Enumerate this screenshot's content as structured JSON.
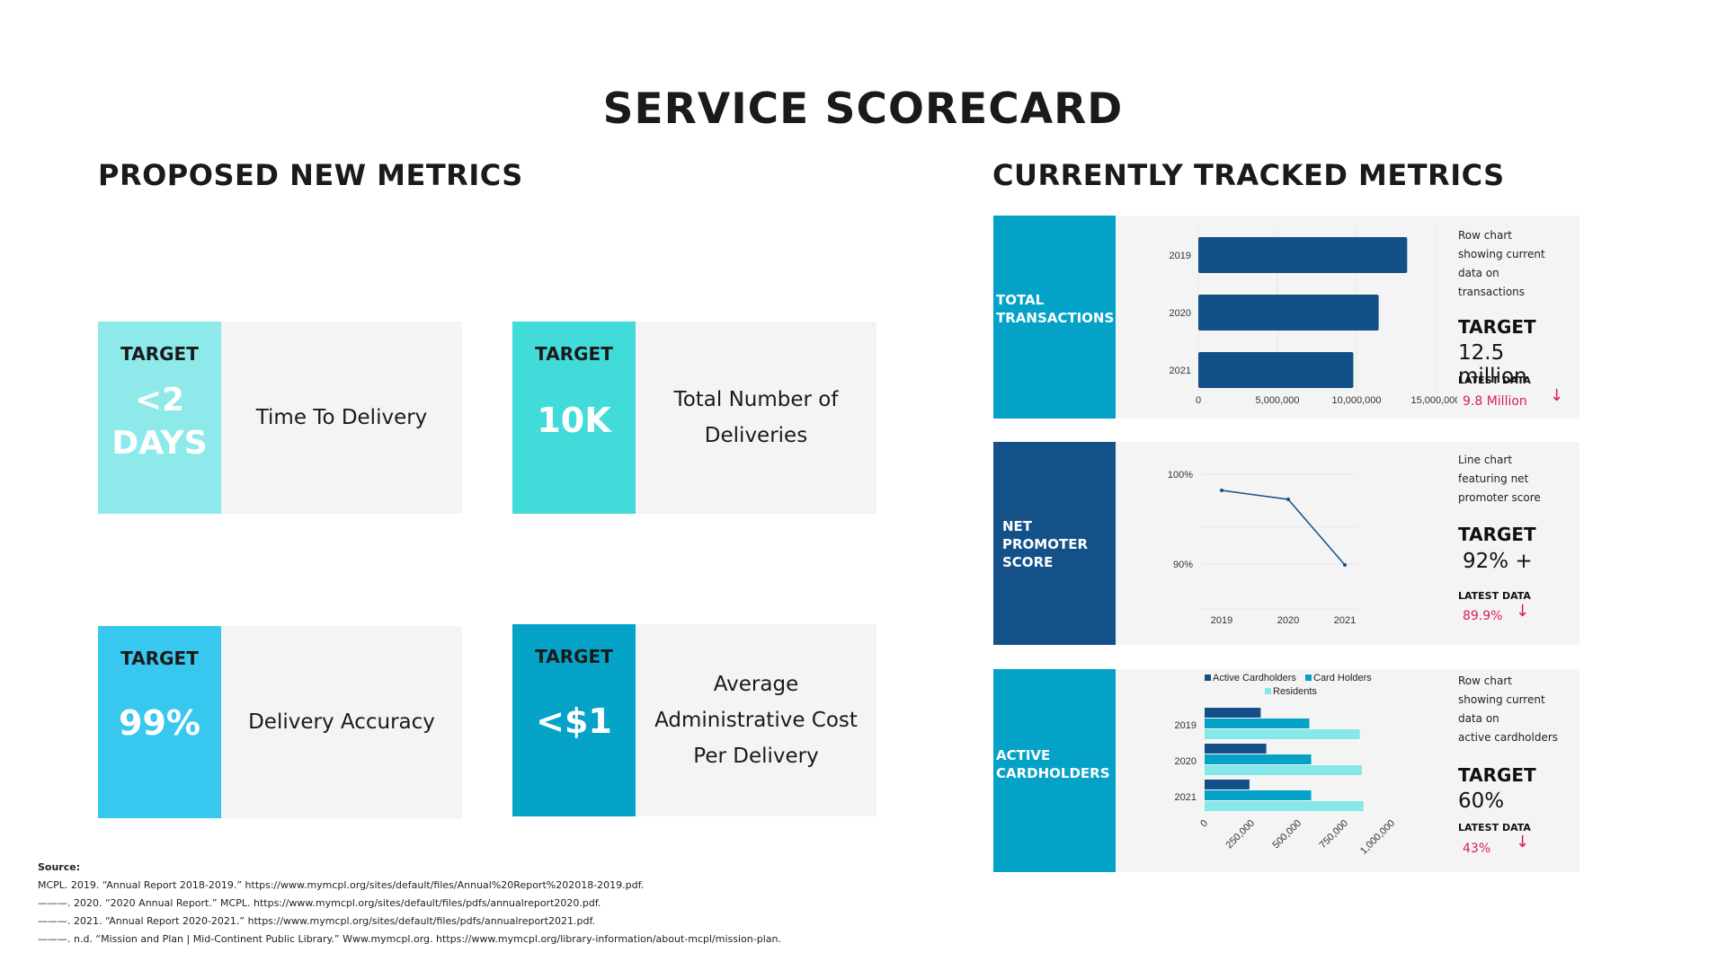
{
  "title": "SERVICE SCORECARD",
  "proposed": {
    "heading": "PROPOSED NEW METRICS",
    "cards": [
      {
        "target_label": "TARGET",
        "target_value": "<2\nDAYS",
        "metric": "Time To Delivery",
        "color": "#8de9ea"
      },
      {
        "target_label": "TARGET",
        "target_value": "10K",
        "metric": "Total Number of\nDeliveries",
        "color": "#41dbd9"
      },
      {
        "target_label": "TARGET",
        "target_value": "99%",
        "metric": "Delivery Accuracy",
        "color": "#38c7ef"
      },
      {
        "target_label": "TARGET",
        "target_value": "<$1",
        "metric": "Average\nAdministrative Cost\nPer Delivery",
        "color": "#04a3c7"
      }
    ]
  },
  "tracked": {
    "heading": "CURRENTLY TRACKED METRICS",
    "panels": [
      {
        "label": "TOTAL\nTRANSACTIONS",
        "side_color": "#04a2c7",
        "note": "Row chart\nshowing current\ndata on\ntransactions",
        "target_label": "TARGET",
        "target_value": "12.5 million",
        "latest_label": "LATEST DATA",
        "latest_value": "9.8 Million",
        "arrow": "↓"
      },
      {
        "label": "NET\nPROMOTER\nSCORE",
        "side_color": "#145189",
        "note": "Line chart\nfeaturing net\npromoter score",
        "target_label": "TARGET",
        "target_value": "92% +",
        "latest_label": "LATEST DATA",
        "latest_value": "89.9%",
        "arrow": "↓"
      },
      {
        "label": "ACTIVE\nCARDHOLDERS",
        "side_color": "#04a2c7",
        "note": "Row chart\nshowing current\ndata on\nactive cardholders",
        "target_label": "TARGET",
        "target_value": "60%",
        "latest_label": "LATEST DATA",
        "latest_value": "43%",
        "arrow": "↓"
      }
    ]
  },
  "source": {
    "heading": "Source:",
    "lines": [
      "MCPL. 2019. “Annual Report 2018-2019.” https://www.mymcpl.org/sites/default/files/Annual%20Report%202018-2019.pdf.",
      "———. 2020. “2020 Annual Report.” MCPL. https://www.mymcpl.org/sites/default/files/pdfs/annualreport2020.pdf.",
      "———. 2021. “Annual Report 2020-2021.” https://www.mymcpl.org/sites/default/files/pdfs/annualreport2021.pdf.",
      "———. n.d. “Mission and Plan | Mid-Continent Public Library.” Www.mymcpl.org. https://www.mymcpl.org/library-information/about-mcpl/mission-plan."
    ]
  },
  "chart_data": [
    {
      "type": "bar",
      "orientation": "horizontal",
      "categories": [
        "2019",
        "2020",
        "2021"
      ],
      "values": [
        13200000,
        11400000,
        9800000
      ],
      "xlim": [
        0,
        15000000
      ],
      "xticks": [
        "0",
        "5,000,000",
        "10,000,000",
        "15,000,000"
      ],
      "color": "#135087"
    },
    {
      "type": "line",
      "x": [
        "2019",
        "2020",
        "2021"
      ],
      "values": [
        98.2,
        97.2,
        89.9
      ],
      "ylim": [
        85,
        100
      ],
      "yticks": [
        "100%",
        "90%"
      ],
      "color": "#135087"
    },
    {
      "type": "bar",
      "orientation": "horizontal",
      "categories": [
        "2019",
        "2020",
        "2021"
      ],
      "series": [
        {
          "name": "Active Cardholders",
          "values": [
            300000,
            330000,
            240000
          ],
          "color": "#135087"
        },
        {
          "name": "Card Holders",
          "values": [
            560000,
            570000,
            570000
          ],
          "color": "#04a2c7"
        },
        {
          "name": "Residents",
          "values": [
            830000,
            840000,
            850000
          ],
          "color": "#86e8e8"
        }
      ],
      "xlim": [
        0,
        1000000
      ],
      "xticks": [
        "0",
        "250,000",
        "500,000",
        "750,000",
        "1,000,000"
      ],
      "legend": "top"
    }
  ]
}
